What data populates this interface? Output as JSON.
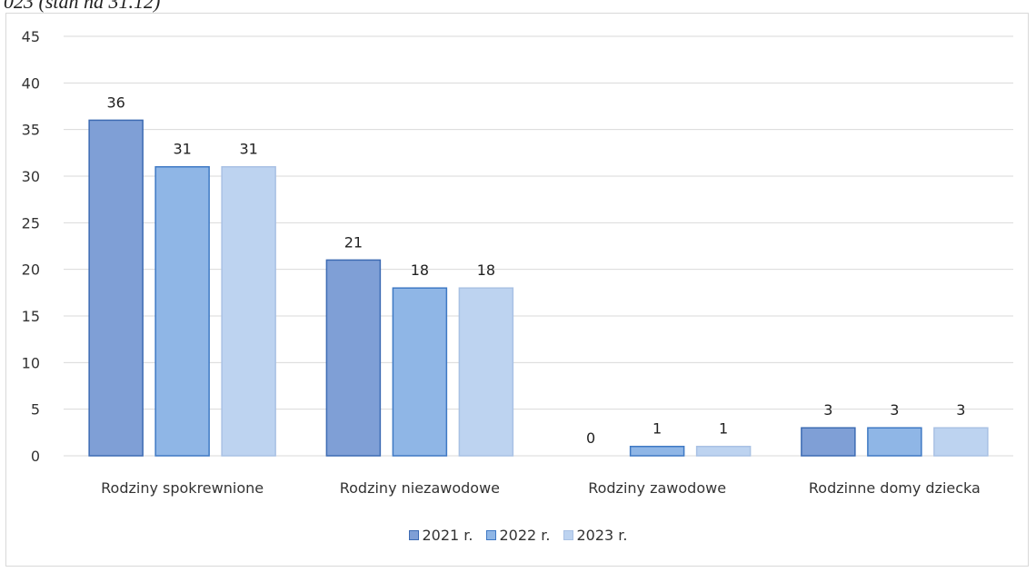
{
  "header": {
    "caption_fragment": "023 (stan na 31.12)"
  },
  "chart_data": {
    "type": "bar",
    "categories": [
      "Rodziny spokrewnione",
      "Rodziny niezawodowe",
      "Rodziny zawodowe",
      "Rodzinne domy dziecka"
    ],
    "series": [
      {
        "name": "2021 r.",
        "values": [
          36,
          21,
          0,
          3
        ],
        "color": "#7f9fd6",
        "stroke": "#3d6bb3"
      },
      {
        "name": "2022 r.",
        "values": [
          31,
          18,
          1,
          3
        ],
        "color": "#8fb6e6",
        "stroke": "#3f79c4"
      },
      {
        "name": "2023 r.",
        "values": [
          31,
          18,
          1,
          3
        ],
        "color": "#bdd3f0",
        "stroke": "#a9c1e4"
      }
    ],
    "data_labels": [
      [
        "36",
        "21",
        "0",
        "3"
      ],
      [
        "31",
        "18",
        "1",
        "3"
      ],
      [
        "31",
        "18",
        "1",
        "3"
      ]
    ],
    "yticks": [
      "0",
      "5",
      "10",
      "15",
      "20",
      "25",
      "30",
      "35",
      "40",
      "45"
    ],
    "ylim": [
      0,
      45
    ],
    "grid": true,
    "legend_position": "bottom"
  }
}
